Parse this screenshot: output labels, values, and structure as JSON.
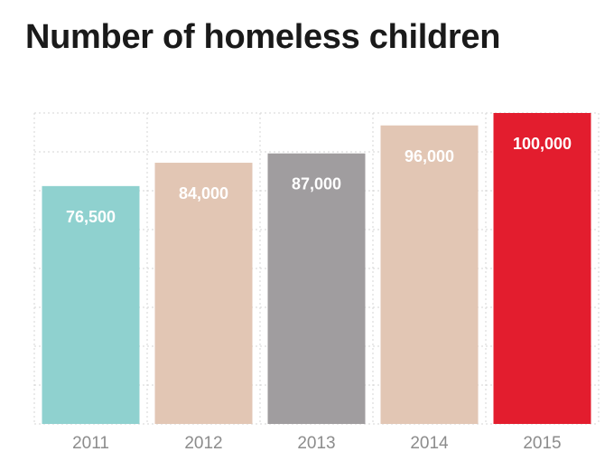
{
  "chart_data": {
    "type": "bar",
    "title": "Number of homeless children",
    "categories": [
      "2011",
      "2012",
      "2013",
      "2014",
      "2015"
    ],
    "values": [
      76500,
      84000,
      87000,
      96000,
      100000
    ],
    "value_labels": [
      "76,500",
      "84,000",
      "87,000",
      "96,000",
      "100,000"
    ],
    "colors": [
      "#8fd1cf",
      "#e2c6b4",
      "#a09d9f",
      "#e2c6b4",
      "#e31d2e"
    ],
    "ylim": [
      0,
      100000
    ],
    "grid": true,
    "legend": "none",
    "xlabel": "",
    "ylabel": ""
  }
}
